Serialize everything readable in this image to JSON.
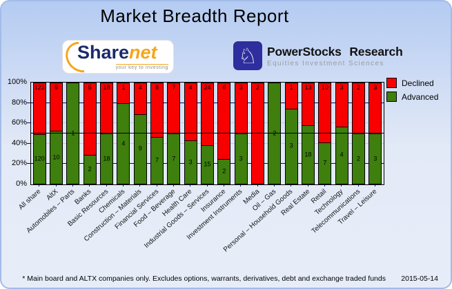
{
  "header": {
    "title": "Market Breadth Report"
  },
  "logos": {
    "sharenet": {
      "word_part1": "Share",
      "word_part2": "net",
      "tagline": "your key to investing"
    },
    "powerstocks": {
      "icon_glyph": "♘",
      "title": "PowerStocks Research",
      "subtitle": "Equities Investment Sciences"
    }
  },
  "colors": {
    "declined": "#F80000",
    "advanced": "#3E7F0D",
    "grid_major": "#000080",
    "grid_minor": "#C9C9C9",
    "mid_line": "#000000"
  },
  "chart_data": {
    "type": "bar",
    "stacked": true,
    "stack_mode": "percent",
    "title": "Market Breadth Report",
    "xlabel": "",
    "ylabel": "",
    "ylim": [
      0,
      100
    ],
    "y_ticks": [
      100,
      80,
      60,
      40,
      20,
      0
    ],
    "y_tick_suffix": "%",
    "grid": "horizontal",
    "mid_reference_line": 50,
    "legend_position": "right-top",
    "categories": [
      "All share",
      "AltX",
      "Automobiles – Parts",
      "Banks",
      "Basic Resources",
      "Chemicals",
      "Construction – Materials",
      "Financial Services",
      "Food – Beverage",
      "Health Care",
      "Industrial Goods – Services",
      "Insurance",
      "Investment Instruments",
      "Media",
      "Oil – Gas",
      "Personal – Household Goods",
      "Real Estate",
      "Retail",
      "Technology",
      "Telecommunications",
      "Travel – Leisure"
    ],
    "series": [
      {
        "name": "Declined",
        "color": "#F80000",
        "values": [
          123,
          9,
          0,
          5,
          18,
          1,
          4,
          8,
          7,
          4,
          24,
          6,
          3,
          2,
          0,
          1,
          13,
          10,
          3,
          2,
          3
        ]
      },
      {
        "name": "Advanced",
        "color": "#3E7F0D",
        "values": [
          120,
          10,
          1,
          2,
          18,
          4,
          9,
          7,
          7,
          3,
          15,
          2,
          3,
          0,
          2,
          3,
          18,
          7,
          4,
          2,
          3
        ]
      }
    ]
  },
  "footer": {
    "note": "* Main board and ALTX companies only. Excludes options, warrants, derivatives, debt and exchange traded funds",
    "date": "2015-05-14"
  }
}
